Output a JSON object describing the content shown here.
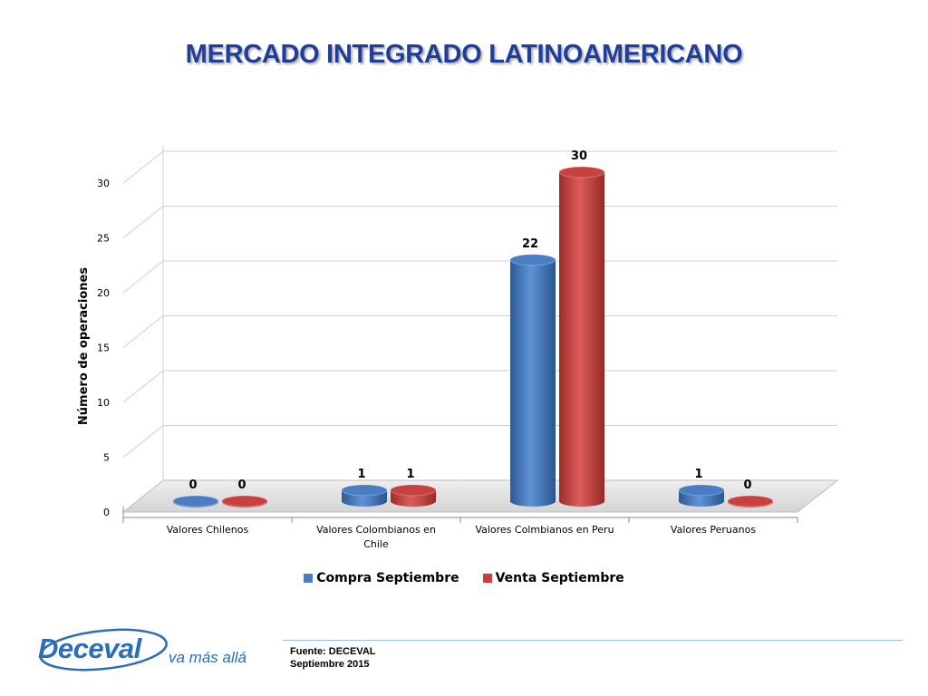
{
  "slide": {
    "title": "MERCADO INTEGRADO LATINOAMERICANO",
    "source_line1": "Fuente: DECEVAL",
    "source_line2": "Septiembre 2015"
  },
  "logo": {
    "text": "Deceval",
    "tagline": "va más allá",
    "color": "#2b6db6"
  },
  "chart_data": {
    "type": "bar",
    "categories": [
      "Valores Chilenos",
      "Valores Colombianos en Chile",
      "Valores Colmbianos en Peru",
      "Valores Peruanos"
    ],
    "series": [
      {
        "name": "Compra Septiembre",
        "values": [
          0,
          1,
          22,
          1
        ],
        "color": "#4a7dc4"
      },
      {
        "name": "Venta Septiembre",
        "values": [
          0,
          1,
          30,
          0
        ],
        "color": "#c8413f"
      }
    ],
    "ylabel": "Número de operaciones",
    "yticks": [
      0,
      5,
      10,
      15,
      20,
      25,
      30
    ],
    "ylim": [
      0,
      30
    ],
    "grid": true,
    "legend": "bottom",
    "style": "3d-cylinder"
  }
}
